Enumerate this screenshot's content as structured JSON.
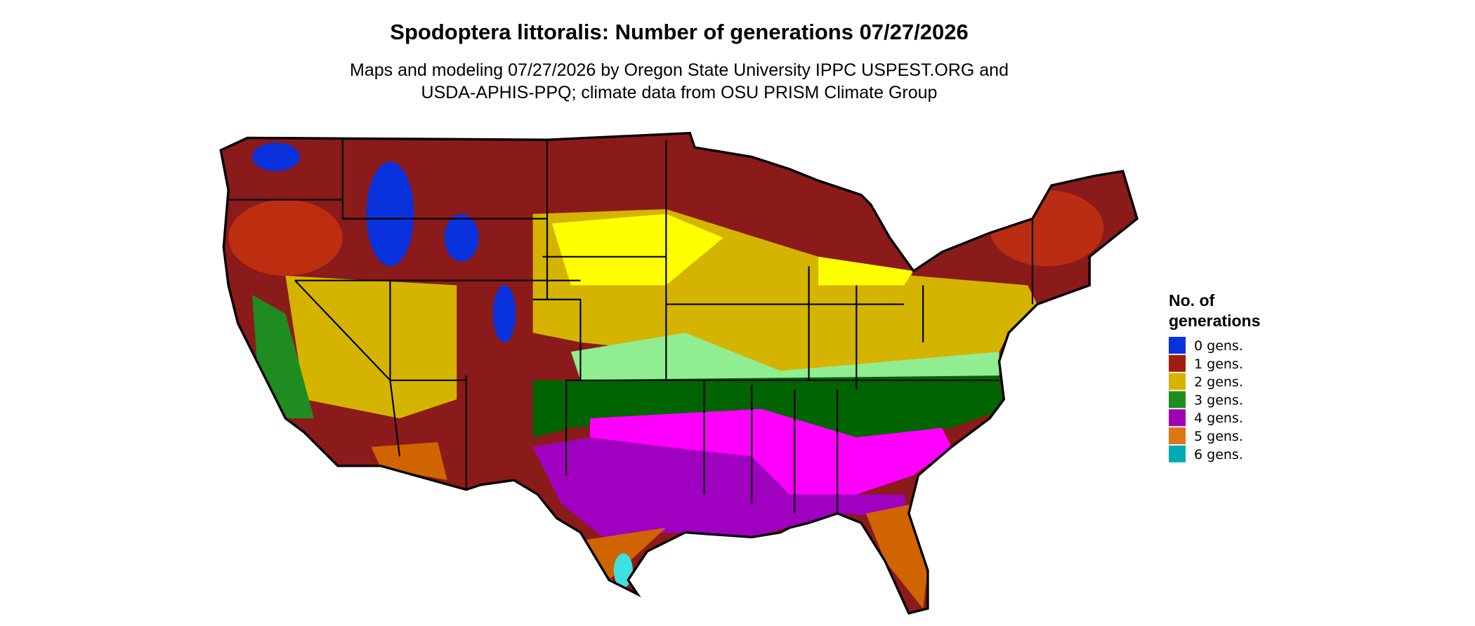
{
  "header": {
    "title": "Spodoptera littoralis: Number of generations 07/27/2026",
    "subtitle": [
      "Maps and modeling 07/27/2026 by Oregon State University IPPC USPEST.ORG and",
      "USDA-APHIS-PPQ; climate data from OSU PRISM Climate Group"
    ]
  },
  "legend": {
    "title": [
      "No. of",
      "generations"
    ],
    "items": [
      {
        "label": "0 gens.",
        "color": "#0a32dc"
      },
      {
        "label": "1 gens.",
        "color": "#a01e0f"
      },
      {
        "label": "2 gens.",
        "color": "#d4b400"
      },
      {
        "label": "3 gens.",
        "color": "#1e8c1e"
      },
      {
        "label": "4 gens.",
        "color": "#a000b4"
      },
      {
        "label": "5 gens.",
        "color": "#dc7814"
      },
      {
        "label": "6 gens.",
        "color": "#00aab4"
      }
    ]
  }
}
